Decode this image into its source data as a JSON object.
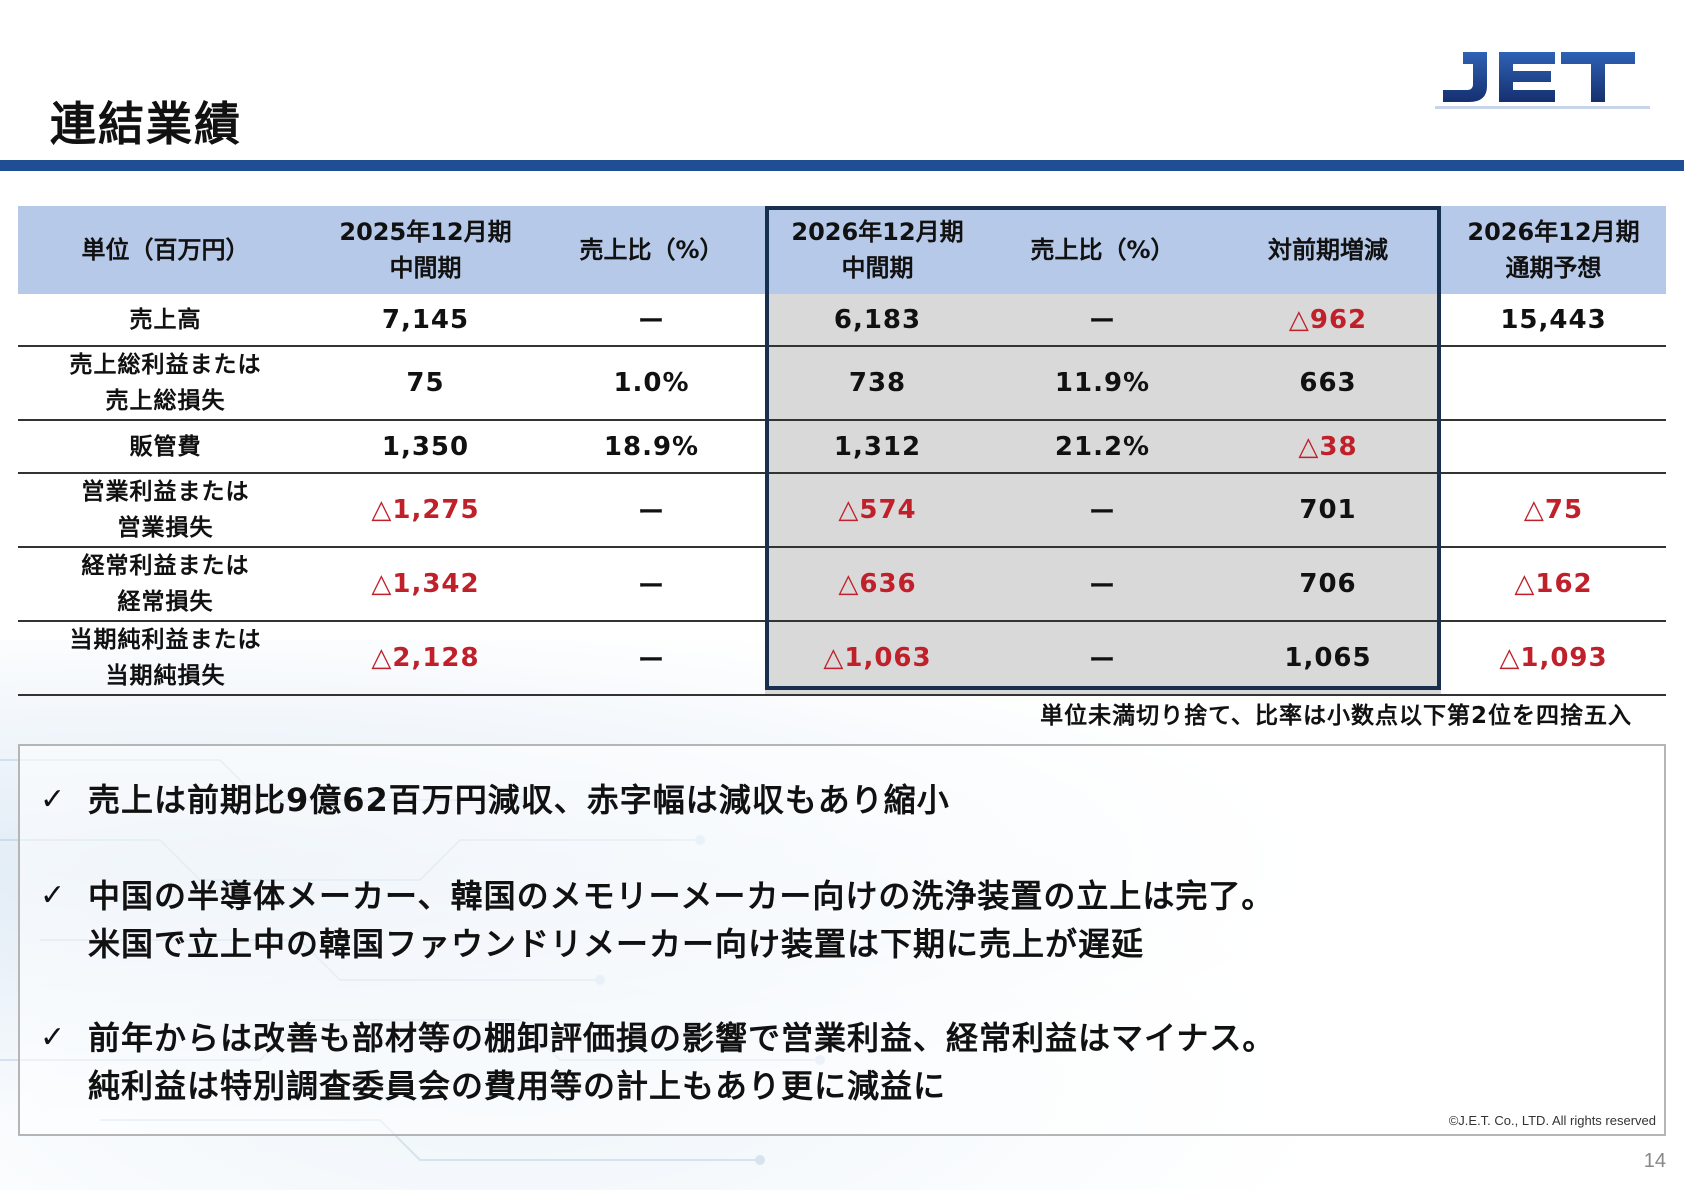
{
  "page": {
    "title": "連結業績",
    "logo_text": "JET",
    "page_number": "14"
  },
  "colors": {
    "title_bar": "#1f4e95",
    "header_bg": "#b6c9e9",
    "highlight_bg": "#d9d9d9",
    "highlight_border": "#17304f",
    "negative": "#c0202a",
    "logo_blue": "#1f3f8f"
  },
  "table": {
    "headers": [
      {
        "line1": "単位（百万円）",
        "line2": ""
      },
      {
        "line1": "2025年12月期",
        "line2": "中間期"
      },
      {
        "line1": "売上比（%）",
        "line2": ""
      },
      {
        "line1": "2026年12月期",
        "line2": "中間期"
      },
      {
        "line1": "売上比（%）",
        "line2": ""
      },
      {
        "line1": "対前期増減",
        "line2": ""
      },
      {
        "line1": "2026年12月期",
        "line2": "通期予想"
      }
    ],
    "rows": [
      {
        "label1": "売上高",
        "label2": "",
        "prev": "7,145",
        "prev_ratio": "ー",
        "curr": "6,183",
        "curr_ratio": "ー",
        "change": "△962",
        "forecast": "15,443"
      },
      {
        "label1": "売上総利益または",
        "label2": "売上総損失",
        "prev": "75",
        "prev_ratio": "1.0%",
        "curr": "738",
        "curr_ratio": "11.9%",
        "change": "663",
        "forecast": ""
      },
      {
        "label1": "販管費",
        "label2": "",
        "prev": "1,350",
        "prev_ratio": "18.9%",
        "curr": "1,312",
        "curr_ratio": "21.2%",
        "change": "△38",
        "forecast": ""
      },
      {
        "label1": "営業利益または",
        "label2": "営業損失",
        "prev": "△1,275",
        "prev_ratio": "ー",
        "curr": "△574",
        "curr_ratio": "ー",
        "change": "701",
        "forecast": "△75"
      },
      {
        "label1": "経常利益または",
        "label2": "経常損失",
        "prev": "△1,342",
        "prev_ratio": "ー",
        "curr": "△636",
        "curr_ratio": "ー",
        "change": "706",
        "forecast": "△162"
      },
      {
        "label1": "当期純利益または",
        "label2": "当期純損失",
        "prev": "△2,128",
        "prev_ratio": "ー",
        "curr": "△1,063",
        "curr_ratio": "ー",
        "change": "1,065",
        "forecast": "△1,093"
      }
    ],
    "note": "単位未満切り捨て、比率は小数点以下第2位を四捨五入"
  },
  "comments": [
    {
      "lines": [
        "売上は前期比9億62百万円減収、赤字幅は減収もあり縮小"
      ]
    },
    {
      "lines": [
        "中国の半導体メーカー、韓国のメモリーメーカー向けの洗浄装置の立上は完了。",
        "米国で立上中の韓国ファウンドリメーカー向け装置は下期に売上が遅延"
      ]
    },
    {
      "lines": [
        "前年からは改善も部材等の棚卸評価損の影響で営業利益、経常利益はマイナス。",
        "純利益は特別調査委員会の費用等の計上もあり更に減益に"
      ]
    }
  ],
  "checkmark": "✓",
  "copyright": "©J.E.T. Co., LTD. All rights reserved"
}
